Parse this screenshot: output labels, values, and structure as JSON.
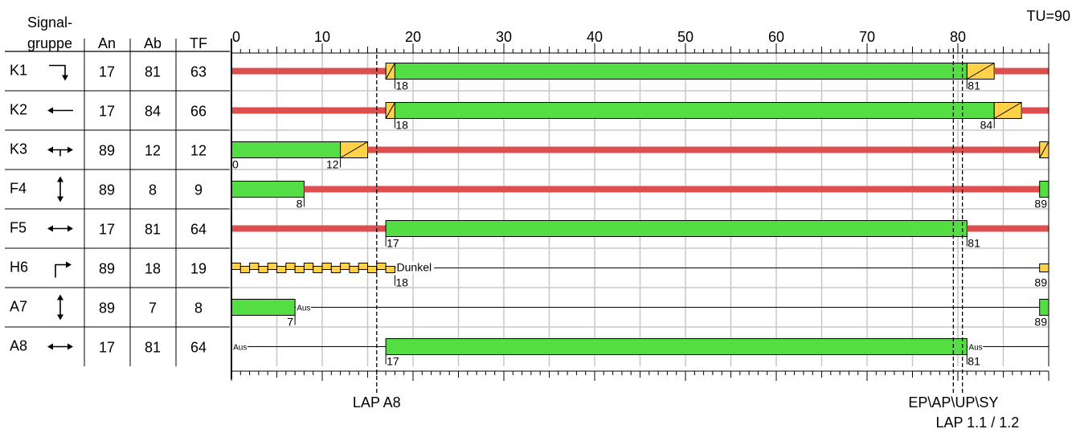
{
  "header": {
    "signal_line1": "Signal-",
    "signal_line2": "gruppe",
    "col_an": "An",
    "col_ab": "Ab",
    "col_tf": "TF",
    "cycle_label": "TU=90"
  },
  "colors": {
    "green": "#55dd44",
    "red": "#dd4f4f",
    "amber": "#ffd24a",
    "grid": "#c8c8c8"
  },
  "chart_data": {
    "type": "signal-timing",
    "cycle": 90,
    "x_ticks": [
      "0",
      "10",
      "20",
      "30",
      "40",
      "50",
      "60",
      "70",
      "80"
    ],
    "x_tick_values": [
      0,
      10,
      20,
      30,
      40,
      50,
      60,
      70,
      80
    ],
    "groups": [
      {
        "name": "K1",
        "icon": "arrow-right-down-icon",
        "an": "17",
        "ab": "81",
        "tf": "63",
        "segments": [
          {
            "type": "red",
            "from": 0,
            "to": 17
          },
          {
            "type": "redamber",
            "from": 17,
            "to": 18
          },
          {
            "type": "green",
            "from": 18,
            "to": 81
          },
          {
            "type": "amber",
            "from": 81,
            "to": 84
          },
          {
            "type": "red",
            "from": 84,
            "to": 90
          }
        ],
        "labels": [
          {
            "text": "18",
            "x": 18,
            "dir": "right"
          },
          {
            "text": "81",
            "x": 81,
            "dir": "right"
          }
        ]
      },
      {
        "name": "K2",
        "icon": "arrow-left-icon",
        "an": "17",
        "ab": "84",
        "tf": "66",
        "segments": [
          {
            "type": "red",
            "from": 0,
            "to": 17
          },
          {
            "type": "redamber",
            "from": 17,
            "to": 18
          },
          {
            "type": "green",
            "from": 18,
            "to": 84
          },
          {
            "type": "amber",
            "from": 84,
            "to": 87
          },
          {
            "type": "red",
            "from": 87,
            "to": 90
          }
        ],
        "labels": [
          {
            "text": "18",
            "x": 18,
            "dir": "right"
          },
          {
            "text": "84",
            "x": 84,
            "dir": "left"
          }
        ]
      },
      {
        "name": "K3",
        "icon": "arrow-left-right-up-icon",
        "an": "89",
        "ab": "12",
        "tf": "12",
        "segments": [
          {
            "type": "green",
            "from": 0,
            "to": 12
          },
          {
            "type": "amber",
            "from": 12,
            "to": 15
          },
          {
            "type": "red",
            "from": 15,
            "to": 89
          },
          {
            "type": "redamber",
            "from": 89,
            "to": 90
          }
        ],
        "labels": [
          {
            "text": "0",
            "x": 0,
            "dir": "right"
          },
          {
            "text": "12",
            "x": 12,
            "dir": "left"
          }
        ]
      },
      {
        "name": "F4",
        "icon": "arrow-up-down-icon",
        "an": "89",
        "ab": "8",
        "tf": "9",
        "segments": [
          {
            "type": "green",
            "from": 0,
            "to": 8
          },
          {
            "type": "red",
            "from": 8,
            "to": 89
          },
          {
            "type": "green",
            "from": 89,
            "to": 90
          }
        ],
        "labels": [
          {
            "text": "8",
            "x": 8,
            "dir": "left"
          },
          {
            "text": "89",
            "x": 90,
            "dir": "left"
          }
        ]
      },
      {
        "name": "F5",
        "icon": "arrow-left-right-icon",
        "an": "17",
        "ab": "81",
        "tf": "64",
        "segments": [
          {
            "type": "red",
            "from": 0,
            "to": 17
          },
          {
            "type": "green",
            "from": 17,
            "to": 81
          },
          {
            "type": "red",
            "from": 81,
            "to": 90
          }
        ],
        "labels": [
          {
            "text": "17",
            "x": 17,
            "dir": "right"
          },
          {
            "text": "81",
            "x": 81,
            "dir": "right"
          }
        ]
      },
      {
        "name": "H6",
        "icon": "arrow-up-right-icon",
        "an": "89",
        "ab": "18",
        "tf": "19",
        "segments": [
          {
            "type": "flash",
            "from": 0,
            "to": 18
          },
          {
            "type": "dark",
            "from": 18,
            "to": 89
          },
          {
            "type": "amberthin",
            "from": 89,
            "to": 90
          }
        ],
        "labels": [
          {
            "text": "18",
            "x": 18,
            "dir": "right"
          },
          {
            "text": "89",
            "x": 90,
            "dir": "left"
          }
        ],
        "inline": [
          {
            "text": "Dunkel",
            "x": 18.1
          }
        ]
      },
      {
        "name": "A7",
        "icon": "arrow-up-down-icon",
        "an": "89",
        "ab": "7",
        "tf": "8",
        "segments": [
          {
            "type": "green",
            "from": 0,
            "to": 7
          },
          {
            "type": "dark",
            "from": 7,
            "to": 89
          },
          {
            "type": "green",
            "from": 89,
            "to": 90
          }
        ],
        "labels": [
          {
            "text": "7",
            "x": 7,
            "dir": "left"
          },
          {
            "text": "89",
            "x": 90,
            "dir": "left"
          }
        ],
        "inline": [
          {
            "text": "Aus",
            "x": 7.1
          }
        ]
      },
      {
        "name": "A8",
        "icon": "arrow-left-right-icon",
        "an": "17",
        "ab": "81",
        "tf": "64",
        "segments": [
          {
            "type": "dark",
            "from": 0,
            "to": 17
          },
          {
            "type": "green",
            "from": 17,
            "to": 81
          },
          {
            "type": "dark",
            "from": 81,
            "to": 90
          }
        ],
        "labels": [
          {
            "text": "17",
            "x": 17,
            "dir": "right"
          },
          {
            "text": "81",
            "x": 81,
            "dir": "right"
          }
        ],
        "inline": [
          {
            "text": "Aus",
            "x": 0.1
          },
          {
            "text": "Aus",
            "x": 81.1
          }
        ]
      }
    ],
    "markers": [
      {
        "x": 16,
        "label": "LAP A8",
        "label2": ""
      },
      {
        "x": 79.5,
        "label": "EP\\AP\\UP\\SY",
        "label2": "LAP 1.1 / 1.2"
      },
      {
        "x": 80.5,
        "label": "",
        "label2": ""
      }
    ]
  }
}
